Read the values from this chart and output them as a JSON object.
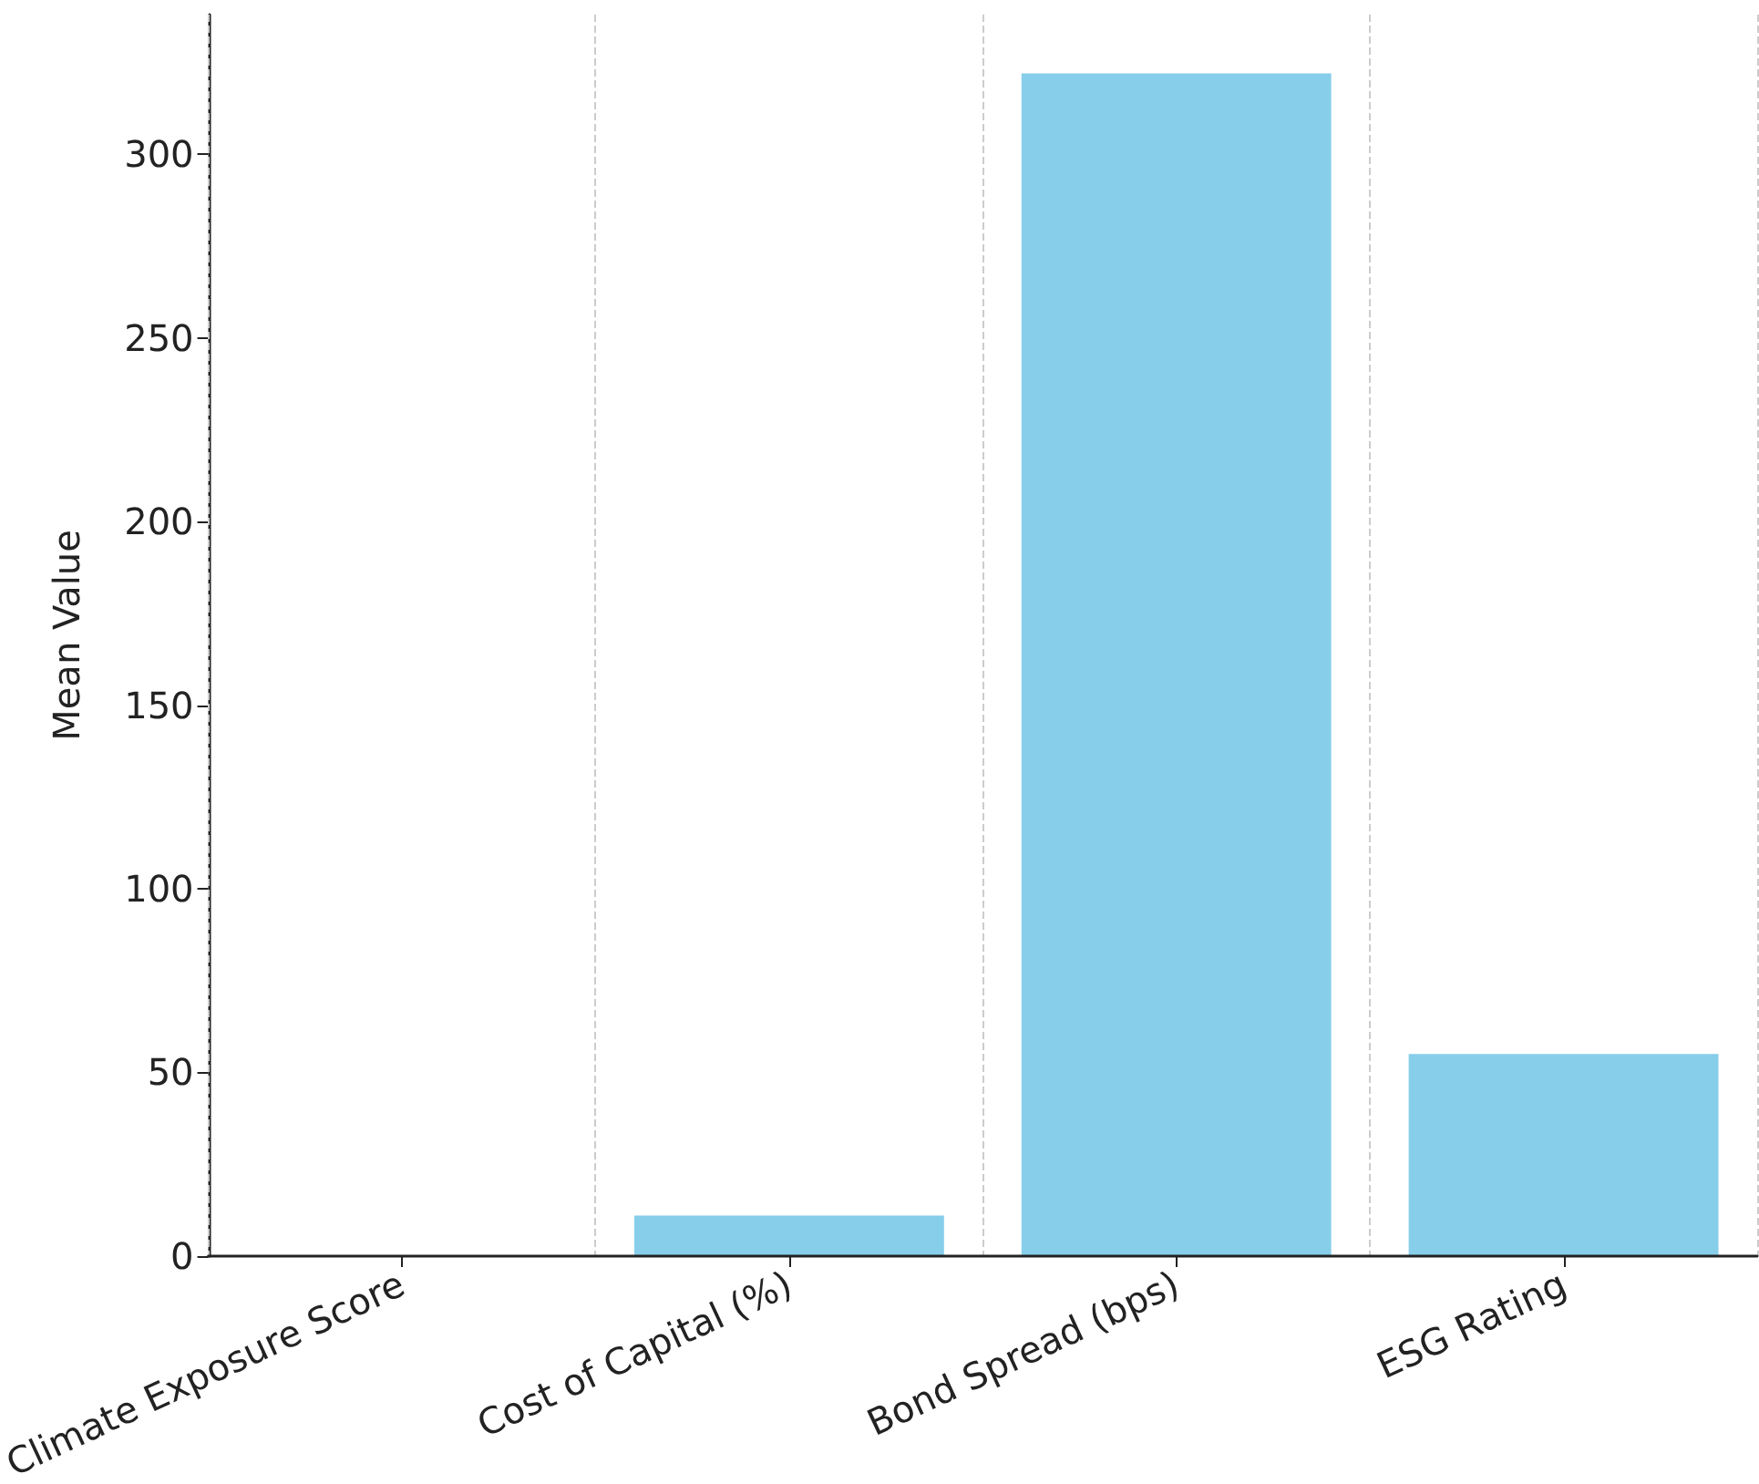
{
  "chart_data": {
    "type": "bar",
    "ylabel": "Mean Value",
    "categories": [
      "Climate Exposure Score",
      "Cost of Capital (%)",
      "Bond Spread (bps)",
      "ESG Rating"
    ],
    "values": [
      0,
      11,
      322,
      55
    ],
    "color": "#87ceeb",
    "ylim": [
      0,
      338
    ],
    "yticks": [
      0,
      50,
      100,
      150,
      200,
      250,
      300
    ],
    "grid": "x"
  }
}
